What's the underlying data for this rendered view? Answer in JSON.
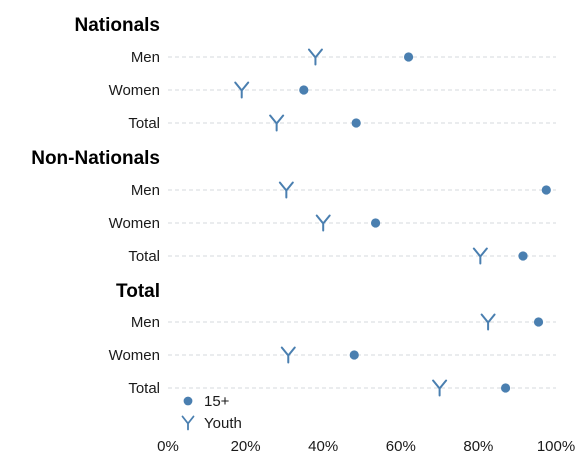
{
  "colors": {
    "marker": "#4a7fb0",
    "grid": "#d4d8dc"
  },
  "chart_data": {
    "type": "scatter",
    "orientation": "horizontal",
    "xlim": [
      0,
      100
    ],
    "x_ticks": [
      "0%",
      "20%",
      "40%",
      "60%",
      "80%",
      "100%"
    ],
    "legend": {
      "placement": "bottom-left",
      "entries": [
        {
          "name": "15+",
          "marker": "dot"
        },
        {
          "name": "Youth",
          "marker": "Y"
        }
      ]
    },
    "groups": [
      {
        "label": "Nationals",
        "rows": [
          {
            "label": "Men",
            "s15": 62,
            "youth": 38
          },
          {
            "label": "Women",
            "s15": 35,
            "youth": 19
          },
          {
            "label": "Total",
            "s15": 48.5,
            "youth": 28
          }
        ]
      },
      {
        "label": "Non-Nationals",
        "rows": [
          {
            "label": "Men",
            "s15": 97.5,
            "youth": 30.5
          },
          {
            "label": "Women",
            "s15": 53.5,
            "youth": 40
          },
          {
            "label": "Total",
            "s15": 91.5,
            "youth": 80.5
          }
        ]
      },
      {
        "label": "Total",
        "rows": [
          {
            "label": "Men",
            "s15": 95.5,
            "youth": 82.5
          },
          {
            "label": "Women",
            "s15": 48,
            "youth": 31
          },
          {
            "label": "Total",
            "s15": 87,
            "youth": 70
          }
        ]
      }
    ]
  }
}
